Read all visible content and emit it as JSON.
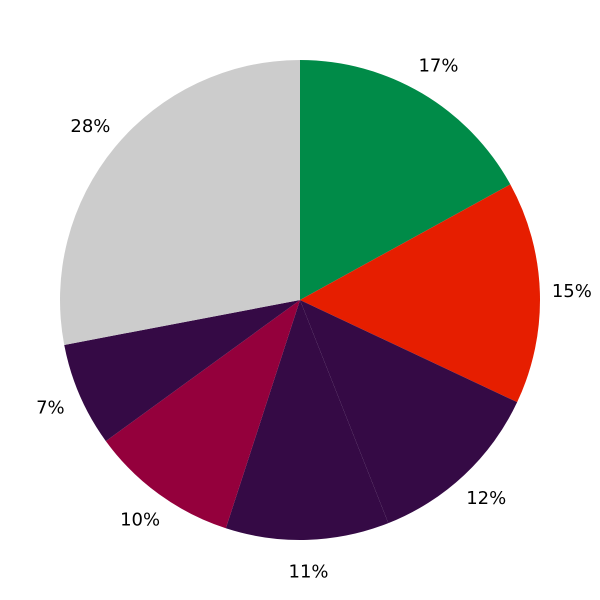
{
  "chart_data": {
    "type": "pie",
    "title": "",
    "start": "top",
    "direction": "clockwise",
    "slices": [
      {
        "label": "17%",
        "value": 17,
        "color": "#008b48"
      },
      {
        "label": "15%",
        "value": 15,
        "color": "#e61e00"
      },
      {
        "label": "12%",
        "value": 12,
        "color": "#350a45"
      },
      {
        "label": "11%",
        "value": 11,
        "color": "#350a45"
      },
      {
        "label": "10%",
        "value": 10,
        "color": "#94003c"
      },
      {
        "label": "7%",
        "value": 7,
        "color": "#350a45"
      },
      {
        "label": "28%",
        "value": 28,
        "color": "#cccccc"
      }
    ]
  }
}
